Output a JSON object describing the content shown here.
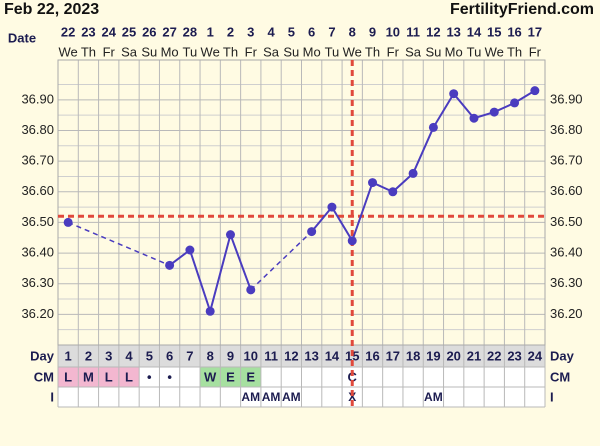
{
  "chart_data": {
    "type": "bbt",
    "title": "Feb 22, 2023",
    "site": "FertilityFriend.com",
    "date_label": "Date",
    "dates": [
      "22",
      "23",
      "24",
      "25",
      "26",
      "27",
      "28",
      "1",
      "2",
      "3",
      "4",
      "5",
      "6",
      "7",
      "8",
      "9",
      "10",
      "11",
      "12",
      "13",
      "14",
      "15",
      "16",
      "17"
    ],
    "weekdays": [
      "We",
      "Th",
      "Fr",
      "Sa",
      "Su",
      "Mo",
      "Tu",
      "We",
      "Th",
      "Fr",
      "Sa",
      "Su",
      "Mo",
      "Tu",
      "We",
      "Th",
      "Fr",
      "Sa",
      "Su",
      "Mo",
      "Tu",
      "We",
      "Th",
      "Fr"
    ],
    "values": [
      36.5,
      null,
      null,
      null,
      null,
      36.36,
      36.41,
      36.21,
      36.46,
      36.28,
      null,
      null,
      36.47,
      36.55,
      36.44,
      36.63,
      36.6,
      36.66,
      36.81,
      36.92,
      36.84,
      36.86,
      36.89,
      36.93
    ],
    "color": "#4a3cbf",
    "coverline": 36.52,
    "coverline_color": "#e0493c",
    "ovulation_day": 15,
    "ylim": [
      36.1,
      37.03
    ],
    "yticks": [
      {
        "value": 36.2,
        "label": "36.20"
      },
      {
        "value": 36.3,
        "label": "36.30"
      },
      {
        "value": 36.4,
        "label": "36.40"
      },
      {
        "value": 36.5,
        "label": "36.50"
      },
      {
        "value": 36.6,
        "label": "36.60"
      },
      {
        "value": 36.7,
        "label": "36.70"
      },
      {
        "value": 36.8,
        "label": "36.80"
      },
      {
        "value": 36.9,
        "label": "36.90"
      }
    ],
    "grid": true,
    "day_label": "Day",
    "days": [
      1,
      2,
      3,
      4,
      5,
      6,
      7,
      8,
      9,
      10,
      11,
      12,
      13,
      14,
      15,
      16,
      17,
      18,
      19,
      20,
      21,
      22,
      23,
      24
    ],
    "cm_label": "CM",
    "cm": [
      "L",
      "M",
      "L",
      "L",
      "•",
      "•",
      null,
      "W",
      "E",
      "E",
      null,
      null,
      null,
      null,
      "C",
      null,
      null,
      null,
      null,
      null,
      null,
      null,
      null,
      null
    ],
    "cm_fill": [
      "#f3b7d0",
      "#f3b7d0",
      "#f3b7d0",
      "#f3b7d0",
      null,
      null,
      null,
      "#a6e0a0",
      "#a6e0a0",
      "#a6e0a0",
      null,
      null,
      null,
      null,
      null,
      null,
      null,
      null,
      null,
      null,
      null,
      null,
      null,
      null
    ],
    "intercourse_label": "I",
    "intercourse": [
      null,
      null,
      null,
      null,
      null,
      null,
      null,
      null,
      null,
      "AM",
      "AM",
      "AM",
      null,
      null,
      "X",
      null,
      null,
      null,
      "AM",
      null,
      null,
      null,
      null,
      null
    ]
  }
}
